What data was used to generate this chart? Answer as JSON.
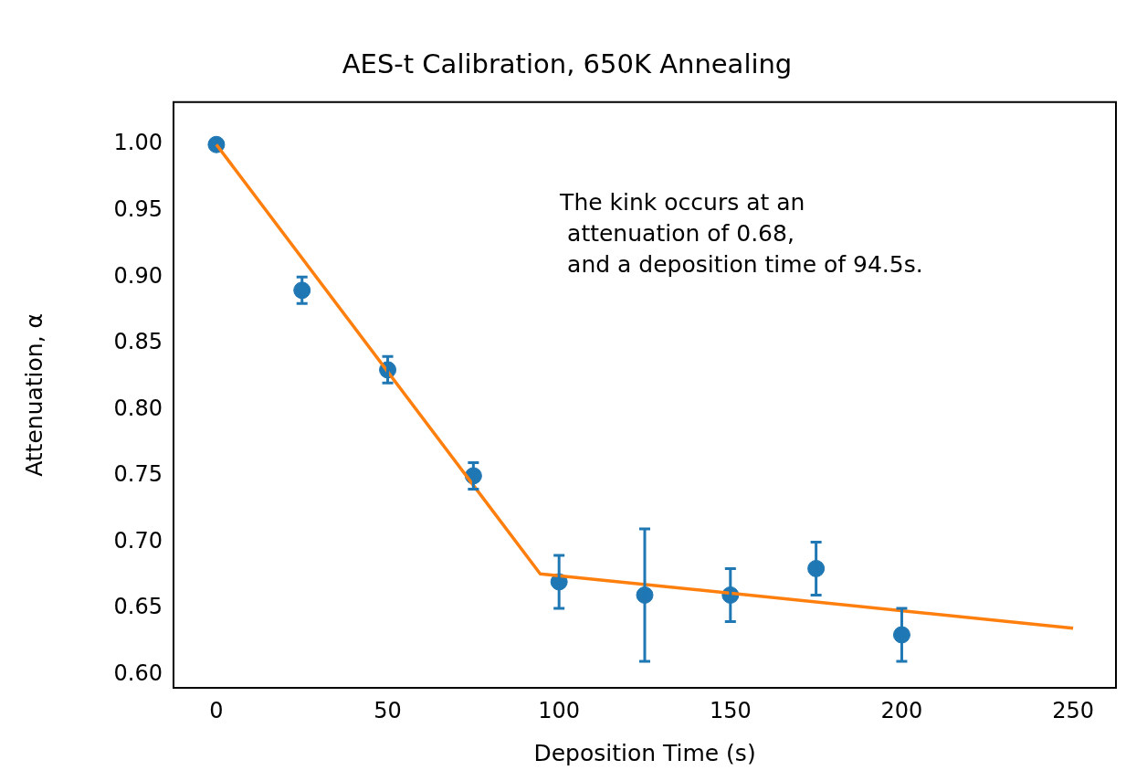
{
  "chart_data": {
    "type": "scatter",
    "title": "AES-t Calibration, 650K Annealing",
    "xlabel": "Deposition Time (s)",
    "ylabel": "Attenuation, α",
    "annotations": [
      "The kink occurs at an\n attenuation of 0.68,\n and a deposition time of 94.5s."
    ],
    "xlim": [
      -12.5,
      262.5
    ],
    "xticks": [
      0,
      50,
      100,
      150,
      200,
      250
    ],
    "ylim": [
      0.59,
      1.032
    ],
    "yticks": [
      {
        "value": 0.6,
        "label": "0.60"
      },
      0.65,
      {
        "value": 0.7,
        "label": "0.70"
      },
      0.75,
      {
        "value": 0.8,
        "label": "0.80"
      },
      0.85,
      {
        "value": 0.9,
        "label": "0.90"
      },
      0.95,
      {
        "value": 1.0,
        "label": "1.00"
      }
    ],
    "grid": false,
    "legend": false,
    "marker": "circle",
    "series": [
      {
        "type": "scatter",
        "color": "#1f77b4",
        "x": [
          0,
          25,
          50,
          75,
          100,
          125,
          150,
          175,
          200
        ],
        "values": [
          1.0,
          0.89,
          0.83,
          0.75,
          0.67,
          0.66,
          0.66,
          0.68,
          0.63
        ],
        "errors": [
          null,
          0.01,
          0.01,
          0.01,
          0.02,
          0.05,
          0.02,
          0.02,
          0.02
        ]
      },
      {
        "type": "line",
        "color": "#ff7f0e",
        "marker": "none",
        "x": [
          0,
          94.5,
          250
        ],
        "values": [
          1.0,
          0.676,
          0.635
        ]
      }
    ]
  }
}
